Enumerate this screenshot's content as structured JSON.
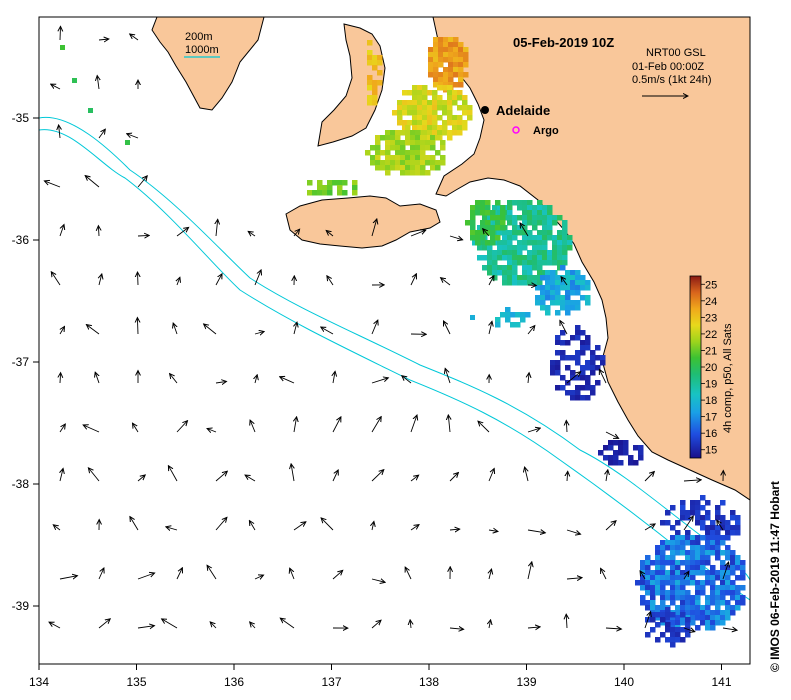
{
  "title": "05-Feb-2019 10Z",
  "product": {
    "line1": "NRT00 GSL",
    "line2": "01-Feb 00:00Z",
    "line3": "0.5m/s (1kt 24h)"
  },
  "isobath_legend": {
    "shallow": "200m",
    "deep": "1000m",
    "color": "#00c8d8"
  },
  "places": {
    "city": "Adelaide",
    "float": "Argo"
  },
  "colorbar": {
    "label": "4h comp, p50, All Sats",
    "ticks": [
      "25",
      "24",
      "23",
      "22",
      "21",
      "20",
      "19",
      "18",
      "17",
      "16",
      "15"
    ],
    "min": 14.5,
    "max": 25.5
  },
  "axes": {
    "x_ticks": [
      "134",
      "135",
      "136",
      "137",
      "138",
      "139",
      "140",
      "141"
    ],
    "y_ticks": [
      "-35",
      "-36",
      "-37",
      "-38",
      "-39"
    ]
  },
  "credit": "© IMOS 06-Feb-2019 11:47 Hobart",
  "colors": {
    "land": "#f9c79a",
    "isobath": "#00c8d8",
    "argo": "#ff00ff"
  }
}
